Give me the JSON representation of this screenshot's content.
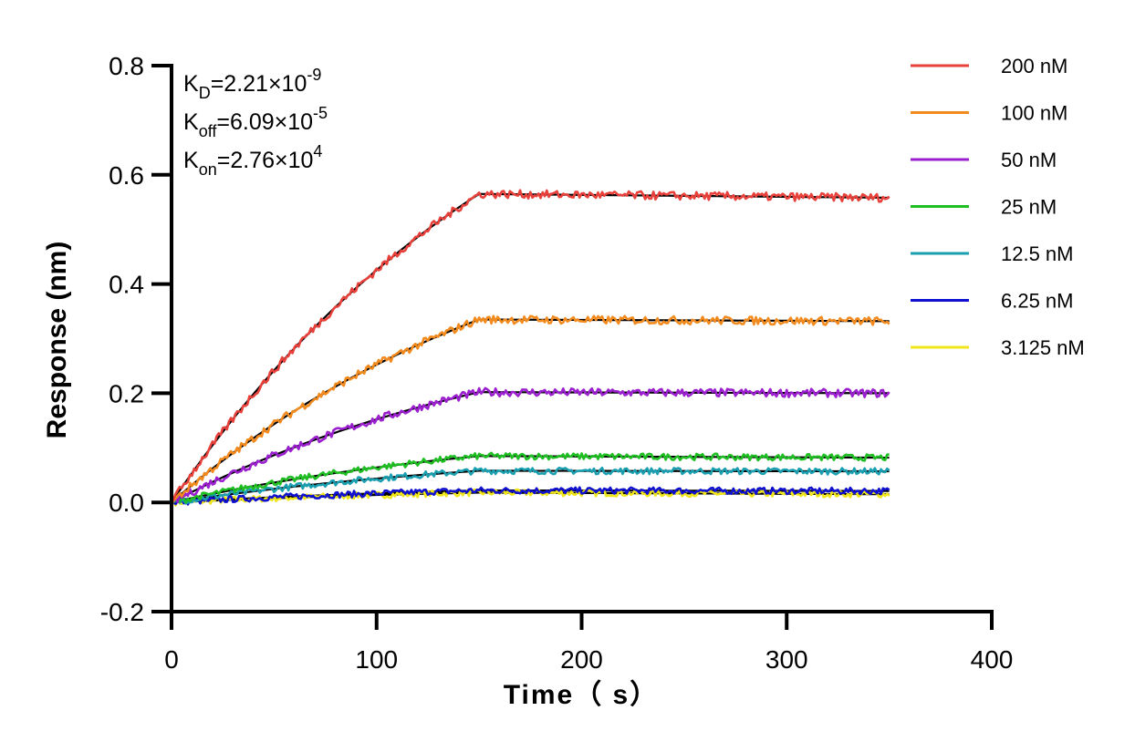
{
  "chart_data": {
    "type": "line",
    "title": "",
    "xlabel": "Time（ s）",
    "ylabel": "Response (nm)",
    "xlim": [
      0,
      400
    ],
    "ylim": [
      -0.2,
      0.8
    ],
    "xticks": [
      "0",
      "100",
      "200",
      "300",
      "400"
    ],
    "yticks": [
      "-0.2",
      "0.0",
      "0.2",
      "0.4",
      "0.6",
      "0.8"
    ],
    "grid": false,
    "legend_position": "top-right",
    "association_end_s": 150,
    "dissociation_end_s": 350,
    "annotations": [
      {
        "base": "K",
        "sub": "D",
        "text": "=2.21×10",
        "sup": "-9"
      },
      {
        "base": "K",
        "sub": "off",
        "text": "=6.09×10",
        "sup": "-5"
      },
      {
        "base": "K",
        "sub": "on",
        "text": "=2.76×10",
        "sup": "4"
      }
    ],
    "series": [
      {
        "name": "200 nM",
        "color": "#e8413b",
        "plateau": 0.565,
        "end": 0.558
      },
      {
        "name": "100 nM",
        "color": "#f28a1e",
        "plateau": 0.335,
        "end": 0.332
      },
      {
        "name": "50 nM",
        "color": "#9b1fcf",
        "plateau": 0.202,
        "end": 0.2
      },
      {
        "name": "25 nM",
        "color": "#1fbf24",
        "plateau": 0.085,
        "end": 0.082
      },
      {
        "name": "12.5 nM",
        "color": "#1a9fb0",
        "plateau": 0.058,
        "end": 0.057
      },
      {
        "name": "6.25 nM",
        "color": "#1010d0",
        "plateau": 0.022,
        "end": 0.021
      },
      {
        "name": "3.125 nM",
        "color": "#f0e619",
        "plateau": 0.018,
        "end": 0.015
      }
    ],
    "fit_color": "#000000"
  }
}
